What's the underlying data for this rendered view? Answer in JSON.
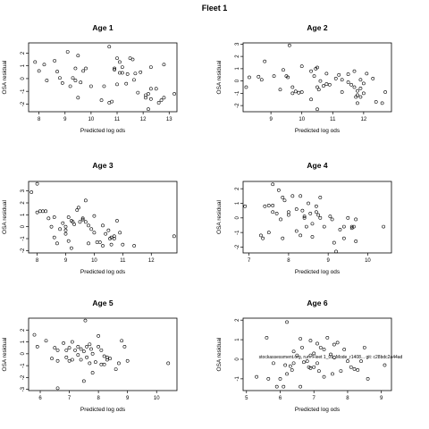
{
  "page_title": "Fleet 1",
  "chart_data": [
    {
      "type": "scatter",
      "title": "Age 1",
      "xlabel": "Predicted log ods",
      "ylabel": "OSA residual",
      "xlim": [
        7.6,
        13.3
      ],
      "ylim": [
        -2.6,
        2.8
      ],
      "xticks": [
        8,
        9,
        10,
        11,
        12,
        13
      ],
      "yticks": [
        -2,
        -1,
        0,
        1,
        2
      ],
      "points": [
        [
          7.85,
          1.3
        ],
        [
          8.0,
          0.6
        ],
        [
          8.2,
          1.1
        ],
        [
          8.3,
          -0.15
        ],
        [
          8.6,
          1.4
        ],
        [
          8.7,
          0.55
        ],
        [
          8.8,
          0.05
        ],
        [
          8.9,
          -0.35
        ],
        [
          9.1,
          2.1
        ],
        [
          9.2,
          -0.6
        ],
        [
          9.3,
          0.05
        ],
        [
          9.4,
          -0.15
        ],
        [
          9.4,
          0.8
        ],
        [
          9.5,
          1.8
        ],
        [
          9.6,
          -0.3
        ],
        [
          9.7,
          0.6
        ],
        [
          9.8,
          0.8
        ],
        [
          9.5,
          -1.5
        ],
        [
          10.0,
          -0.6
        ],
        [
          10.4,
          -1.7
        ],
        [
          10.5,
          -0.6
        ],
        [
          10.7,
          2.5
        ],
        [
          10.7,
          -1.9
        ],
        [
          10.8,
          -1.8
        ],
        [
          10.9,
          0.7
        ],
        [
          10.9,
          0.8
        ],
        [
          11.0,
          -0.45
        ],
        [
          11.0,
          1.6
        ],
        [
          11.1,
          1.3
        ],
        [
          11.1,
          0.45
        ],
        [
          11.2,
          0.45
        ],
        [
          11.2,
          0.9
        ],
        [
          11.35,
          -0.4
        ],
        [
          11.4,
          0.35
        ],
        [
          11.5,
          1.6
        ],
        [
          11.6,
          1.5
        ],
        [
          11.65,
          -0.1
        ],
        [
          11.7,
          0.4
        ],
        [
          11.8,
          -1.1
        ],
        [
          11.9,
          0.5
        ],
        [
          12.1,
          -1.3
        ],
        [
          12.1,
          -1.5
        ],
        [
          12.2,
          -1.2
        ],
        [
          12.3,
          -1.6
        ],
        [
          12.3,
          0.9
        ],
        [
          12.3,
          -0.8
        ],
        [
          12.5,
          -0.8
        ],
        [
          12.6,
          -1.9
        ],
        [
          12.7,
          -1.7
        ],
        [
          12.8,
          1.1
        ],
        [
          12.8,
          -1.5
        ],
        [
          13.2,
          -1.2
        ],
        [
          12.2,
          -2.4
        ]
      ]
    },
    {
      "type": "scatter",
      "title": "Age 2",
      "xlabel": "Predicted log ods",
      "ylabel": "OSA residual",
      "xlim": [
        8.1,
        12.9
      ],
      "ylim": [
        -2.5,
        3.1
      ],
      "xticks": [
        9,
        10,
        11,
        12
      ],
      "yticks": [
        -2,
        -1,
        0,
        1,
        2,
        3
      ],
      "points": [
        [
          8.2,
          -0.5
        ],
        [
          8.3,
          0.3
        ],
        [
          8.6,
          0.35
        ],
        [
          8.7,
          0.1
        ],
        [
          8.8,
          1.6
        ],
        [
          9.1,
          0.4
        ],
        [
          9.3,
          -0.7
        ],
        [
          9.4,
          0.9
        ],
        [
          9.5,
          0.4
        ],
        [
          9.55,
          0.3
        ],
        [
          9.6,
          2.9
        ],
        [
          9.7,
          -1.0
        ],
        [
          9.7,
          -0.5
        ],
        [
          9.8,
          -0.85
        ],
        [
          9.9,
          -0.95
        ],
        [
          10.0,
          1.2
        ],
        [
          10.0,
          -0.9
        ],
        [
          10.3,
          -1.5
        ],
        [
          10.3,
          0.8
        ],
        [
          10.4,
          0.4
        ],
        [
          10.45,
          1.0
        ],
        [
          10.5,
          1.1
        ],
        [
          10.5,
          -0.5
        ],
        [
          10.55,
          -0.7
        ],
        [
          10.6,
          0.0
        ],
        [
          10.7,
          -0.4
        ],
        [
          10.8,
          -0.25
        ],
        [
          10.8,
          0.6
        ],
        [
          10.9,
          -0.3
        ],
        [
          10.5,
          -2.3
        ],
        [
          11.1,
          0.2
        ],
        [
          11.2,
          0.5
        ],
        [
          11.3,
          -0.9
        ],
        [
          11.3,
          0.1
        ],
        [
          11.5,
          -0.1
        ],
        [
          11.5,
          0.55
        ],
        [
          11.7,
          -0.5
        ],
        [
          11.7,
          0.8
        ],
        [
          11.75,
          -1.3
        ],
        [
          11.8,
          -0.8
        ],
        [
          11.8,
          -1.15
        ],
        [
          11.9,
          -1.3
        ],
        [
          11.9,
          0.1
        ],
        [
          12.0,
          -0.2
        ],
        [
          12.0,
          -1.0
        ],
        [
          12.1,
          0.6
        ],
        [
          12.3,
          0.2
        ],
        [
          12.4,
          -1.7
        ],
        [
          12.6,
          -1.8
        ],
        [
          12.7,
          -0.9
        ],
        [
          11.9,
          -0.6
        ],
        [
          11.6,
          -0.3
        ],
        [
          11.8,
          -1.8
        ]
      ]
    },
    {
      "type": "scatter",
      "title": "Age 3",
      "xlabel": "Predicted log ods",
      "ylabel": "OSA residual",
      "xlim": [
        7.7,
        12.9
      ],
      "ylim": [
        -2.2,
        3.8
      ],
      "xticks": [
        8,
        9,
        10,
        11,
        12
      ],
      "yticks": [
        -2,
        -1,
        0,
        1,
        2,
        3
      ],
      "points": [
        [
          7.8,
          2.9
        ],
        [
          8.0,
          3.6
        ],
        [
          8.0,
          1.2
        ],
        [
          8.1,
          1.3
        ],
        [
          8.2,
          1.3
        ],
        [
          8.3,
          1.3
        ],
        [
          8.4,
          0.7
        ],
        [
          8.5,
          0.0
        ],
        [
          8.6,
          0.8
        ],
        [
          8.6,
          -0.9
        ],
        [
          8.7,
          -1.4
        ],
        [
          8.8,
          -0.2
        ],
        [
          8.9,
          0.3
        ],
        [
          9.0,
          0.0
        ],
        [
          9.0,
          -0.3
        ],
        [
          9.1,
          -1.2
        ],
        [
          9.1,
          0.8
        ],
        [
          9.2,
          -1.8
        ],
        [
          9.2,
          0.5
        ],
        [
          9.3,
          0.2
        ],
        [
          9.4,
          1.4
        ],
        [
          9.45,
          1.6
        ],
        [
          9.5,
          0.4
        ],
        [
          9.6,
          0.7
        ],
        [
          9.6,
          0.6
        ],
        [
          9.7,
          2.2
        ],
        [
          9.7,
          0.4
        ],
        [
          9.8,
          -1.4
        ],
        [
          9.8,
          0.1
        ],
        [
          9.9,
          -0.2
        ],
        [
          10.0,
          -0.5
        ],
        [
          10.0,
          0.9
        ],
        [
          10.1,
          -1.3
        ],
        [
          10.2,
          -1.3
        ],
        [
          10.3,
          0.1
        ],
        [
          10.3,
          -1.6
        ],
        [
          10.4,
          -0.6
        ],
        [
          10.5,
          -0.3
        ],
        [
          10.6,
          -0.9
        ],
        [
          10.6,
          -1.5
        ],
        [
          10.7,
          -0.8
        ],
        [
          10.8,
          0.5
        ],
        [
          10.9,
          -0.5
        ],
        [
          11.0,
          -1.5
        ],
        [
          11.4,
          -1.6
        ],
        [
          12.8,
          -0.8
        ],
        [
          10.7,
          -1.0
        ],
        [
          9.0,
          -0.6
        ],
        [
          9.25,
          0.4
        ],
        [
          10.55,
          -1.0
        ]
      ]
    },
    {
      "type": "scatter",
      "title": "Age 4",
      "xlabel": "Predicted log ods",
      "ylabel": "OSA residual",
      "xlim": [
        6.85,
        10.6
      ],
      "ylim": [
        -2.4,
        2.5
      ],
      "xticks": [
        7,
        8,
        9,
        10
      ],
      "yticks": [
        -2,
        -1,
        0,
        1,
        2
      ],
      "points": [
        [
          6.9,
          0.8
        ],
        [
          7.3,
          -1.2
        ],
        [
          7.35,
          -1.4
        ],
        [
          7.4,
          0.8
        ],
        [
          7.5,
          -1.0
        ],
        [
          7.5,
          0.85
        ],
        [
          7.6,
          0.85
        ],
        [
          7.6,
          2.3
        ],
        [
          7.6,
          0.4
        ],
        [
          7.7,
          0.3
        ],
        [
          7.75,
          1.9
        ],
        [
          7.8,
          -0.1
        ],
        [
          7.85,
          1.4
        ],
        [
          7.85,
          -1.4
        ],
        [
          7.9,
          1.2
        ],
        [
          8.0,
          0.4
        ],
        [
          8.0,
          0.2
        ],
        [
          8.1,
          1.5
        ],
        [
          8.2,
          0.6
        ],
        [
          8.2,
          -0.9
        ],
        [
          8.3,
          -1.2
        ],
        [
          8.3,
          1.5
        ],
        [
          8.35,
          0.5
        ],
        [
          8.4,
          0.0
        ],
        [
          8.4,
          0.1
        ],
        [
          8.45,
          -0.6
        ],
        [
          8.5,
          1.0
        ],
        [
          8.55,
          0.3
        ],
        [
          8.6,
          -0.4
        ],
        [
          8.6,
          -1.3
        ],
        [
          8.7,
          0.4
        ],
        [
          8.7,
          0.8
        ],
        [
          8.75,
          0.2
        ],
        [
          8.8,
          1.4
        ],
        [
          8.8,
          0.0
        ],
        [
          8.9,
          -0.6
        ],
        [
          9.05,
          0.1
        ],
        [
          9.1,
          -0.1
        ],
        [
          9.15,
          -1.7
        ],
        [
          9.2,
          -2.3
        ],
        [
          9.3,
          -0.8
        ],
        [
          9.4,
          -0.6
        ],
        [
          9.5,
          0.0
        ],
        [
          9.6,
          -0.6
        ],
        [
          9.65,
          -0.6
        ],
        [
          9.7,
          -0.1
        ],
        [
          9.7,
          -1.6
        ],
        [
          9.4,
          -1.4
        ],
        [
          10.4,
          -0.6
        ],
        [
          9.6,
          -0.7
        ]
      ]
    },
    {
      "type": "scatter",
      "title": "Age 5",
      "xlabel": "Predicted log ods",
      "ylabel": "OSA residual",
      "xlim": [
        5.6,
        10.7
      ],
      "ylim": [
        -3.1,
        3.0
      ],
      "xticks": [
        6,
        7,
        8,
        9,
        10
      ],
      "yticks": [
        -3,
        -2,
        -1,
        0,
        1,
        2
      ],
      "points": [
        [
          5.8,
          1.6
        ],
        [
          5.9,
          0.6
        ],
        [
          6.2,
          1.1
        ],
        [
          6.4,
          -0.4
        ],
        [
          6.5,
          0.5
        ],
        [
          6.6,
          0.3
        ],
        [
          6.6,
          -0.6
        ],
        [
          6.8,
          0.9
        ],
        [
          6.9,
          0.3
        ],
        [
          6.9,
          -0.3
        ],
        [
          7.0,
          0.5
        ],
        [
          7.0,
          -0.6
        ],
        [
          7.1,
          1.0
        ],
        [
          6.6,
          -2.9
        ],
        [
          7.2,
          0.3
        ],
        [
          7.3,
          0.6
        ],
        [
          7.3,
          -0.1
        ],
        [
          7.4,
          0.4
        ],
        [
          7.4,
          -0.5
        ],
        [
          7.5,
          -2.3
        ],
        [
          7.5,
          0.2
        ],
        [
          7.55,
          2.8
        ],
        [
          7.6,
          0.6
        ],
        [
          7.6,
          -0.3
        ],
        [
          7.7,
          -0.8
        ],
        [
          7.7,
          0.8
        ],
        [
          7.75,
          0.4
        ],
        [
          7.8,
          0.0
        ],
        [
          7.8,
          -1.6
        ],
        [
          7.9,
          -0.7
        ],
        [
          8.0,
          0.6
        ],
        [
          8.0,
          1.5
        ],
        [
          8.1,
          0.3
        ],
        [
          8.1,
          -0.9
        ],
        [
          8.2,
          -0.9
        ],
        [
          8.2,
          -0.2
        ],
        [
          8.3,
          -0.5
        ],
        [
          8.4,
          -0.4
        ],
        [
          8.6,
          -1.3
        ],
        [
          8.7,
          -0.8
        ],
        [
          8.8,
          1.1
        ],
        [
          8.9,
          0.6
        ],
        [
          9.0,
          -0.6
        ],
        [
          10.4,
          -0.8
        ],
        [
          8.3,
          -0.3
        ],
        [
          7.1,
          -0.5
        ]
      ]
    },
    {
      "type": "scatter",
      "title": "Age 6",
      "xlabel": "Predicted log ods",
      "ylabel": "OSA residual",
      "xlim": [
        4.9,
        9.3
      ],
      "ylim": [
        -1.6,
        2.1
      ],
      "xticks": [
        5,
        6,
        7,
        8,
        9
      ],
      "yticks": [
        -1,
        0,
        1,
        2
      ],
      "points": [
        [
          5.3,
          -0.9
        ],
        [
          5.6,
          1.1
        ],
        [
          5.65,
          -1.0
        ],
        [
          5.8,
          -0.2
        ],
        [
          5.9,
          -1.4
        ],
        [
          6.0,
          -1.0
        ],
        [
          6.1,
          -1.4
        ],
        [
          6.15,
          -0.3
        ],
        [
          6.2,
          -0.75
        ],
        [
          6.2,
          1.9
        ],
        [
          6.3,
          -0.35
        ],
        [
          6.35,
          -0.55
        ],
        [
          6.4,
          0.4
        ],
        [
          6.4,
          -0.2
        ],
        [
          6.5,
          0.2
        ],
        [
          6.6,
          1.05
        ],
        [
          6.6,
          -1.4
        ],
        [
          6.65,
          0.6
        ],
        [
          6.7,
          -0.15
        ],
        [
          6.8,
          -0.1
        ],
        [
          6.85,
          -0.4
        ],
        [
          6.9,
          0.95
        ],
        [
          6.9,
          -0.45
        ],
        [
          7.0,
          0.3
        ],
        [
          7.1,
          0.8
        ],
        [
          7.1,
          -0.2
        ],
        [
          7.15,
          -0.6
        ],
        [
          7.2,
          0.6
        ],
        [
          7.3,
          0.5
        ],
        [
          7.3,
          -0.9
        ],
        [
          7.4,
          1.1
        ],
        [
          7.5,
          0.25
        ],
        [
          7.55,
          -0.75
        ],
        [
          7.6,
          0.75
        ],
        [
          7.6,
          0.1
        ],
        [
          7.7,
          0.85
        ],
        [
          7.8,
          -0.6
        ],
        [
          7.9,
          0.5
        ],
        [
          8.0,
          -0.1
        ],
        [
          8.1,
          -0.4
        ],
        [
          8.2,
          -0.5
        ],
        [
          8.3,
          -0.55
        ],
        [
          8.4,
          -0.1
        ],
        [
          8.5,
          0.6
        ],
        [
          8.6,
          -1.0
        ],
        [
          9.1,
          -0.3
        ],
        [
          7.0,
          -0.4
        ],
        [
          6.9,
          0.2
        ]
      ]
    }
  ],
  "overlay_text": "stockassessment.org, run: Fleet 1_01_Mode_r1408... git: c28bdc2a44ad"
}
